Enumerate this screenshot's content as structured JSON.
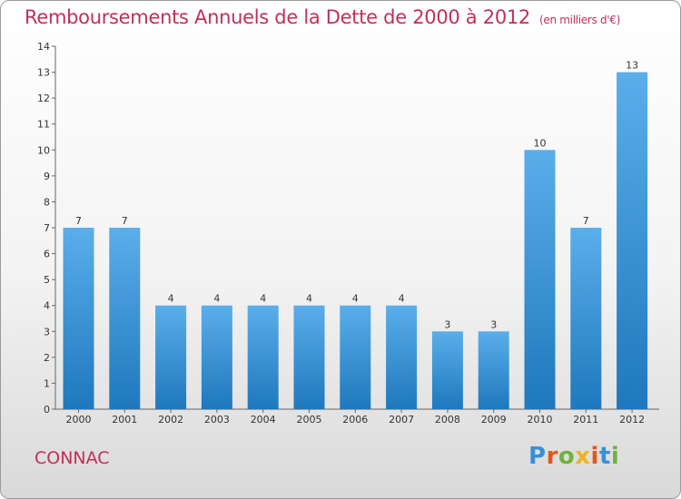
{
  "chart_data": {
    "type": "bar",
    "title": "Remboursements Annuels de la Dette de 2000 à 2012",
    "unit": "(en milliers d'€)",
    "categories": [
      "2000",
      "2001",
      "2002",
      "2003",
      "2004",
      "2005",
      "2006",
      "2007",
      "2008",
      "2009",
      "2010",
      "2011",
      "2012"
    ],
    "values": [
      7,
      7,
      4,
      4,
      4,
      4,
      4,
      4,
      3,
      3,
      10,
      7,
      13
    ],
    "ylim": [
      0,
      14
    ],
    "yticks": [
      0,
      1,
      2,
      3,
      4,
      5,
      6,
      7,
      8,
      9,
      10,
      11,
      12,
      13,
      14
    ],
    "grid": false,
    "bar_color": "#2e8ad0"
  },
  "footer": {
    "commune": "CONNAC",
    "logo_text": "Proxiti"
  }
}
